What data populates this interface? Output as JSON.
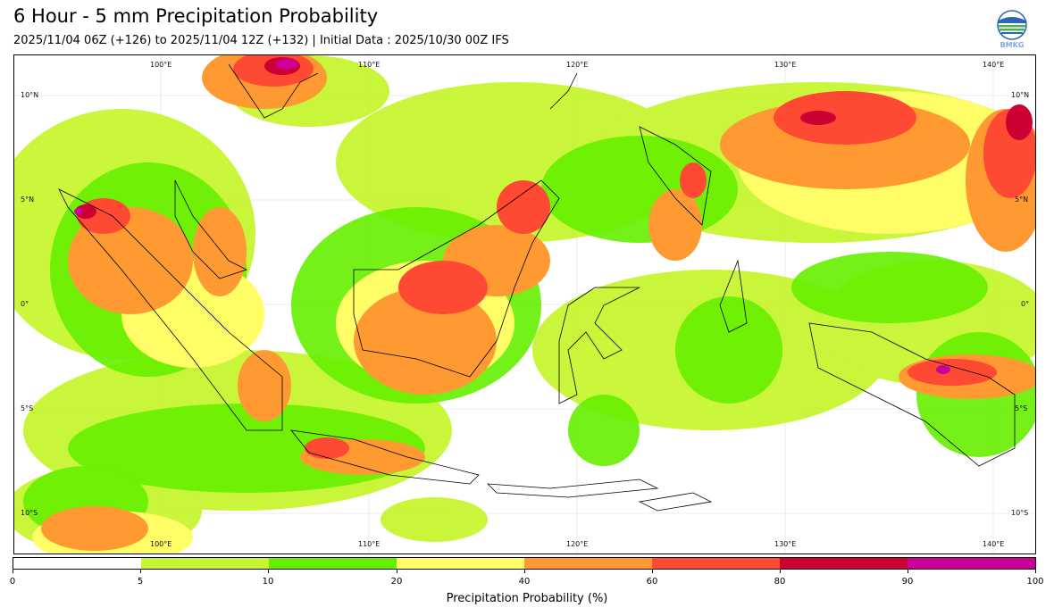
{
  "title": "6 Hour - 5 mm Precipitation Probability",
  "subtitle": "2025/11/04 06Z (+126) to 2025/11/04 12Z (+132) | Initial Data : 2025/10/30 00Z IFS",
  "logo": {
    "text": "BMKG",
    "icon": "bmkg-logo-icon"
  },
  "map": {
    "lon_labels": [
      "100°E",
      "110°E",
      "120°E",
      "130°E",
      "140°E"
    ],
    "lat_labels": [
      "10°N",
      "5°N",
      "0°",
      "5°S",
      "10°S"
    ]
  },
  "colorbar": {
    "label": "Precipitation Probability (%)",
    "ticks": [
      "0",
      "5",
      "10",
      "20",
      "40",
      "60",
      "80",
      "90",
      "100"
    ],
    "colors": [
      "#ffffff",
      "#c7f531",
      "#66f000",
      "#fffe66",
      "#ff9a33",
      "#ff4a33",
      "#cc0033",
      "#cc0099"
    ]
  }
}
